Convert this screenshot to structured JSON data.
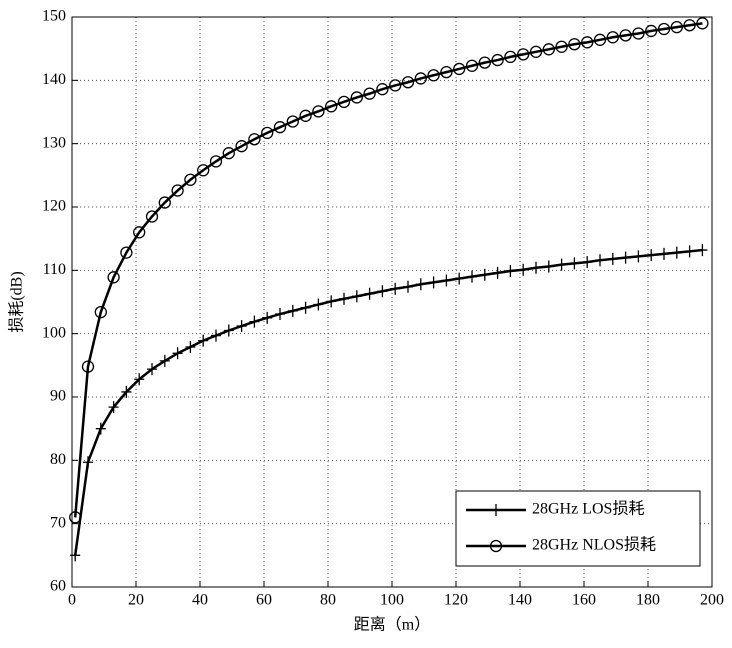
{
  "chart_data": {
    "type": "line",
    "xlabel": "距离（m）",
    "ylabel": "损耗(dB)",
    "x": [
      1,
      5,
      9,
      13,
      17,
      21,
      25,
      29,
      33,
      37,
      41,
      45,
      49,
      53,
      57,
      61,
      65,
      69,
      73,
      77,
      81,
      85,
      89,
      93,
      97,
      101,
      105,
      109,
      113,
      117,
      121,
      125,
      129,
      133,
      137,
      141,
      145,
      149,
      153,
      157,
      161,
      165,
      169,
      173,
      177,
      181,
      185,
      189,
      193,
      197
    ],
    "series": [
      {
        "name": "28GHz LOS损耗",
        "color": "#000000",
        "marker": "plus",
        "values": [
          65,
          79.7,
          85.0,
          88.4,
          90.8,
          92.8,
          94.4,
          95.7,
          96.9,
          97.9,
          98.9,
          99.7,
          100.5,
          101.2,
          101.9,
          102.5,
          103.1,
          103.6,
          104.1,
          104.6,
          105.1,
          105.5,
          105.9,
          106.3,
          106.7,
          107.1,
          107.4,
          107.8,
          108.1,
          108.4,
          108.7,
          109.0,
          109.3,
          109.6,
          109.9,
          110.1,
          110.4,
          110.6,
          110.9,
          111.1,
          111.3,
          111.6,
          111.8,
          112.0,
          112.2,
          112.4,
          112.6,
          112.8,
          113.0,
          113.2
        ]
      },
      {
        "name": "28GHz NLOS损耗",
        "color": "#000000",
        "marker": "circle",
        "values": [
          71,
          94.8,
          103.4,
          108.9,
          112.8,
          116.0,
          118.5,
          120.7,
          122.6,
          124.3,
          125.8,
          127.2,
          128.5,
          129.6,
          130.7,
          131.7,
          132.6,
          133.5,
          134.4,
          135.1,
          135.9,
          136.6,
          137.3,
          137.9,
          138.6,
          139.2,
          139.7,
          140.3,
          140.8,
          141.3,
          141.8,
          142.3,
          142.8,
          143.2,
          143.7,
          144.1,
          144.5,
          144.9,
          145.3,
          145.7,
          146.0,
          146.4,
          146.8,
          147.1,
          147.4,
          147.8,
          148.1,
          148.4,
          148.7,
          149.0
        ]
      }
    ],
    "xlim": [
      0,
      200
    ],
    "xticks": [
      0,
      20,
      40,
      60,
      80,
      100,
      120,
      140,
      160,
      180,
      200
    ],
    "ylim": [
      60,
      150
    ],
    "yticks": [
      60,
      70,
      80,
      90,
      100,
      110,
      120,
      130,
      140,
      150
    ],
    "grid": true,
    "legend": "lower right"
  }
}
